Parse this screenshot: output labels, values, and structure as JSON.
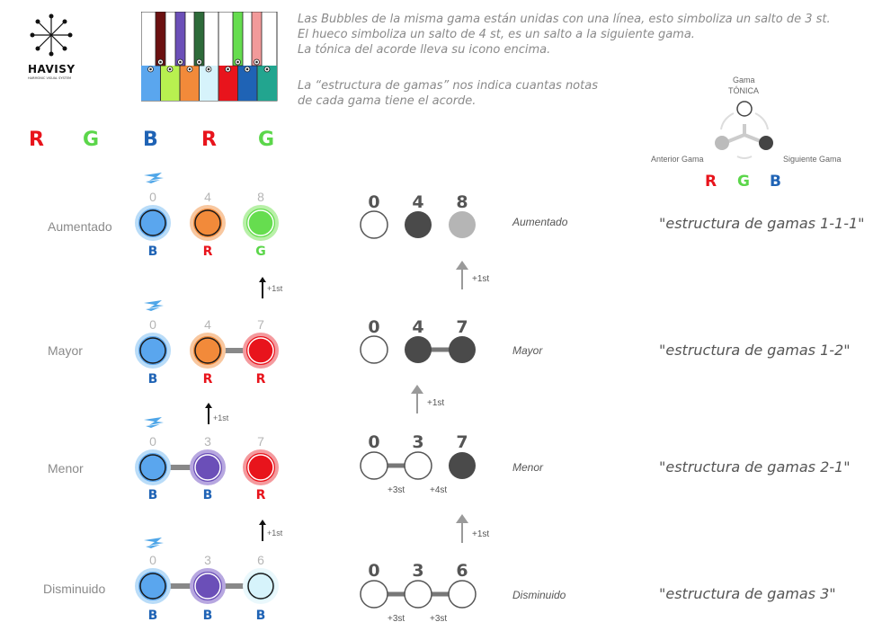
{
  "logo": {
    "text": "HAVISY",
    "subtitle": "HARMONIC VISUAL SYSTEM"
  },
  "notes": [
    "Las Bubbles de la misma gama están unidas con una línea, esto simboliza un salto de 3 st.",
    "El hueco simboliza un salto de 4 st, es un salto a la siguiente gama.",
    "La tónica del acorde lleva su icono encima.",
    "La “estructura de gamas” nos indica cuantas notas",
    "de cada gama tiene el acorde."
  ],
  "rgb_header": [
    "R",
    "G",
    "B",
    "R",
    "G"
  ],
  "gama_diagram": {
    "top_label_1": "Gama",
    "top_label_2": "TÓNICA",
    "left_label": "Anterior Gama",
    "right_label": "Siguiente Gama",
    "letters": [
      "R",
      "G",
      "B"
    ]
  },
  "rows": [
    {
      "name": "Aumentado",
      "nums": [
        "0",
        "4",
        "8"
      ],
      "gamas": [
        "B",
        "R",
        "G"
      ],
      "right_nums": [
        "0",
        "4",
        "8"
      ],
      "label": "Aumentado",
      "structure": "\"estructura de gamas 1-1-1\""
    },
    {
      "name": "Mayor",
      "nums": [
        "0",
        "4",
        "7"
      ],
      "gamas": [
        "B",
        "R",
        "R"
      ],
      "right_nums": [
        "0",
        "4",
        "7"
      ],
      "label": "Mayor",
      "structure": "\"estructura de gamas 1-2\""
    },
    {
      "name": "Menor",
      "nums": [
        "0",
        "3",
        "7"
      ],
      "gamas": [
        "B",
        "B",
        "R"
      ],
      "right_nums": [
        "0",
        "3",
        "7"
      ],
      "label": "Menor",
      "structure": "\"estructura de gamas 2-1\""
    },
    {
      "name": "Disminuido",
      "nums": [
        "0",
        "3",
        "6"
      ],
      "gamas": [
        "B",
        "B",
        "B"
      ],
      "right_nums": [
        "0",
        "3",
        "6"
      ],
      "label": "Disminuido",
      "structure": "\"estructura de gamas 3\""
    }
  ],
  "arrows": [
    "+1st",
    "+1st",
    "+1st",
    "+1st",
    "+1st",
    "+1st"
  ],
  "steps": {
    "menor": [
      "+3st",
      "+4st"
    ],
    "disminuido": [
      "+3st",
      "+3st"
    ]
  },
  "colors": {
    "R": "#e8141c",
    "G": "#5bd64a",
    "B": "#1f63b5",
    "blue_bubble": "#5aa6ee",
    "orange": "#f28a3a",
    "green_bubble": "#66dd4f",
    "purple": "#6b4fb8",
    "light_cyan": "#d6f3fb",
    "dark": "#4a4a4a",
    "grey": "#b5b5b5"
  }
}
